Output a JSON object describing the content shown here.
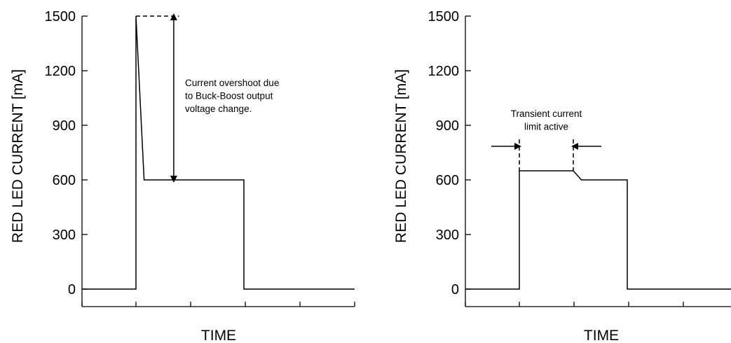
{
  "chart_data": [
    {
      "type": "line",
      "title": "",
      "xlabel": "TIME",
      "ylabel": "RED LED CURRENT [mA]",
      "ylim": [
        0,
        1500
      ],
      "yticks": [
        "0",
        "300",
        "600",
        "900",
        "1200",
        "1500"
      ],
      "x_ticks_count": 6,
      "series": [
        {
          "x": [
            0,
            1,
            1,
            1.15,
            3,
            3,
            4
          ],
          "y": [
            0,
            0,
            1500,
            600,
            600,
            0,
            0
          ]
        }
      ],
      "annotation": {
        "lines": [
          "Current overshoot due",
          "to Buck-Boost output",
          "voltage change."
        ],
        "dashed_cap_y": 1500,
        "arrow_from_y": 1500,
        "arrow_to_y": 600,
        "arrow_x": 1.7
      }
    },
    {
      "type": "line",
      "title": "",
      "xlabel": "TIME",
      "ylabel": "RED LED CURRENT [mA]",
      "ylim": [
        0,
        1500
      ],
      "yticks": [
        "0",
        "300",
        "600",
        "900",
        "1200",
        "1500"
      ],
      "x_ticks_count": 6,
      "series": [
        {
          "x": [
            0,
            1,
            1,
            2,
            2.15,
            3,
            3,
            4
          ],
          "y": [
            0,
            0,
            650,
            650,
            600,
            600,
            0,
            0
          ]
        }
      ],
      "annotation": {
        "lines": [
          "Transient current",
          "limit active"
        ],
        "marker_x": [
          1,
          2
        ],
        "marker_y": 800
      }
    }
  ]
}
